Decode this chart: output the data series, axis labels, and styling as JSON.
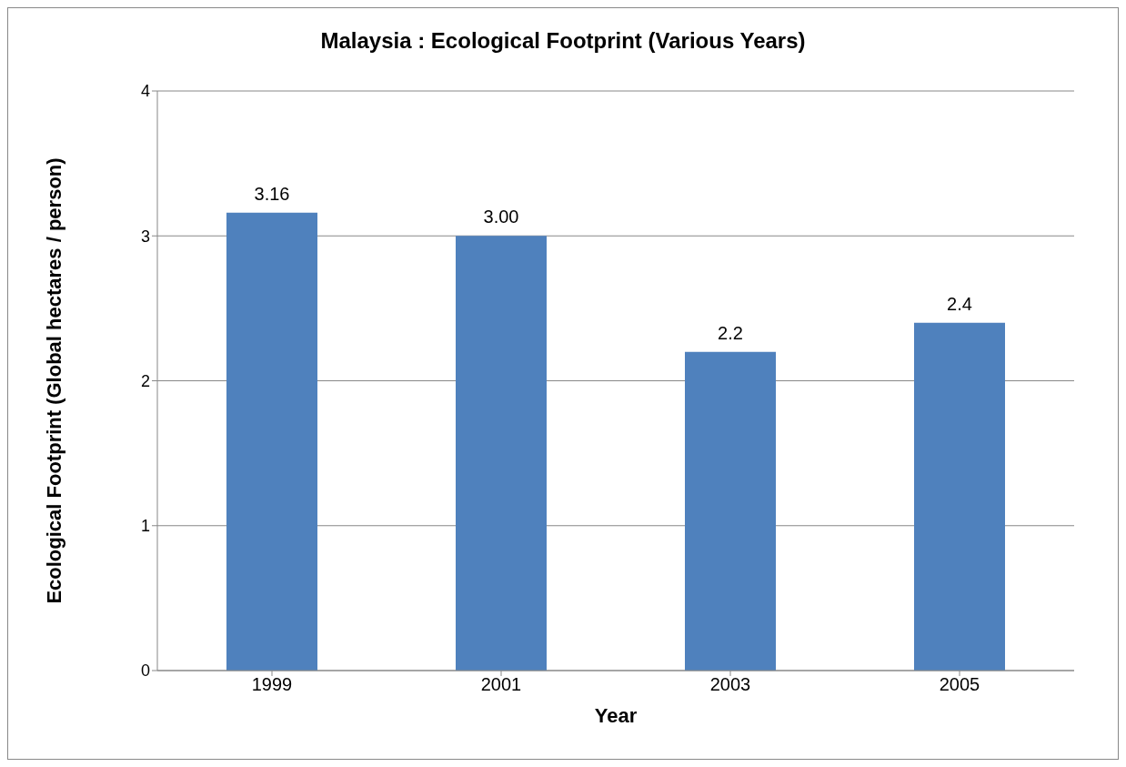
{
  "chart_data": {
    "type": "bar",
    "title": "Malaysia : Ecological Footprint (Various Years)",
    "xlabel": "Year",
    "ylabel": "Ecological Footprint (Global hectares / person)",
    "categories": [
      "1999",
      "2001",
      "2003",
      "2005"
    ],
    "values": [
      3.16,
      3.0,
      2.2,
      2.4
    ],
    "value_labels": [
      "3.16",
      "3.00",
      "2.2",
      "2.4"
    ],
    "color": "#4f81bd",
    "ylim": [
      0,
      4
    ],
    "yticks": [
      0,
      1,
      2,
      3,
      4
    ],
    "grid": "y"
  }
}
